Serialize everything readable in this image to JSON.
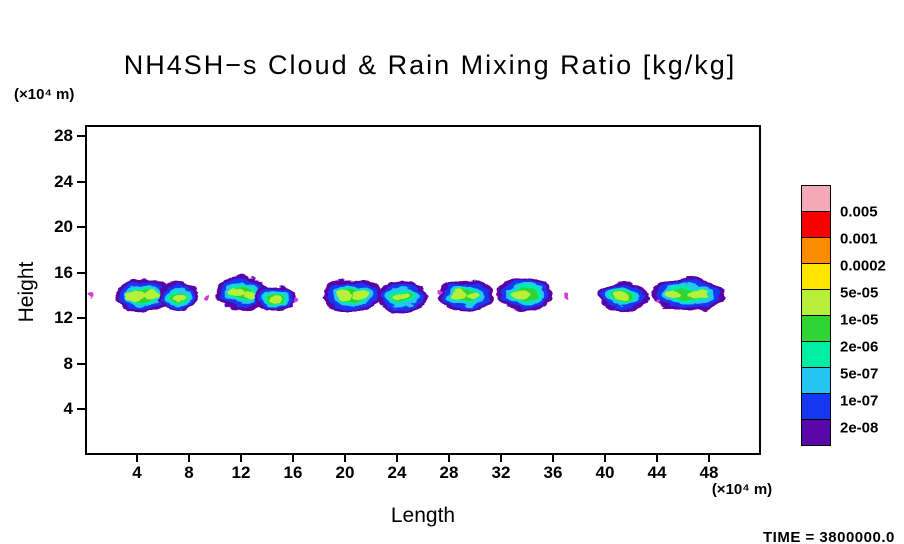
{
  "title": "NH4SH−s Cloud & Rain Mixing Ratio [kg/kg]",
  "time_label": "TIME = 3800000.0",
  "axes": {
    "x_label": "Length",
    "y_label": "Height",
    "x_units": "(×10⁴ m)",
    "y_units": "(×10⁴ m)",
    "x_ticks": [
      4,
      8,
      12,
      16,
      20,
      24,
      28,
      32,
      36,
      40,
      44,
      48
    ],
    "y_ticks": [
      4,
      8,
      12,
      16,
      20,
      24,
      28
    ],
    "x_range": [
      0,
      52
    ],
    "y_range": [
      0,
      29
    ]
  },
  "colorbar": {
    "labels": [
      "0.005",
      "0.001",
      "0.0002",
      "5e-05",
      "1e-05",
      "2e-06",
      "5e-07",
      "1e-07",
      "2e-08"
    ],
    "colors": [
      "#f5a9b8",
      "#f80000",
      "#ff8c00",
      "#ffe400",
      "#b8ef3a",
      "#2fd435",
      "#00efa5",
      "#25c5f2",
      "#1437f0",
      "#5a06a8"
    ]
  },
  "chart_data": {
    "type": "heatmap",
    "title": "NH4SH−s Cloud & Rain Mixing Ratio [kg/kg]",
    "xlabel": "Length (×10⁴ m)",
    "ylabel": "Height (×10⁴ m)",
    "xlim": [
      0,
      52
    ],
    "ylim": [
      0,
      29
    ],
    "grid": false,
    "legend_position": "right",
    "contour_levels_kg_per_kg": [
      2e-08,
      1e-07,
      5e-07,
      2e-06,
      1e-05,
      5e-05,
      0.0002,
      0.001,
      0.005
    ],
    "time_value": "3800000.0",
    "layer_colors": {
      "fringe": "#5a06a8",
      "blue": "#1437f0",
      "cyan": "#25c5f2",
      "spring": "#00efa5",
      "green": "#2fd435",
      "core": "#b8ef3a"
    },
    "speck_color": "#d43bd4",
    "blobs": [
      {
        "x": 4.4,
        "y": 14.0,
        "rx": 1.95,
        "ry": 1.2,
        "cores": [
          {
            "dx": -0.7,
            "dy": -0.05,
            "rx": 0.75,
            "ry": 0.45
          },
          {
            "dx": 0.55,
            "dy": 0.05,
            "rx": 0.6,
            "ry": 0.4
          }
        ]
      },
      {
        "x": 7.1,
        "y": 13.9,
        "rx": 1.35,
        "ry": 1.0,
        "cores": [
          {
            "dx": 0.05,
            "dy": 0.0,
            "rx": 0.55,
            "ry": 0.38
          }
        ]
      },
      {
        "x": 12.0,
        "y": 14.2,
        "rx": 1.75,
        "ry": 1.25,
        "cores": [
          {
            "dx": -0.45,
            "dy": 0.05,
            "rx": 0.65,
            "ry": 0.45
          },
          {
            "dx": 0.6,
            "dy": -0.15,
            "rx": 0.45,
            "ry": 0.3
          }
        ]
      },
      {
        "x": 14.6,
        "y": 13.7,
        "rx": 1.35,
        "ry": 0.95,
        "cores": [
          {
            "dx": 0.0,
            "dy": 0.0,
            "rx": 0.5,
            "ry": 0.35
          }
        ]
      },
      {
        "x": 20.5,
        "y": 14.0,
        "rx": 1.95,
        "ry": 1.2,
        "cores": [
          {
            "dx": -0.6,
            "dy": 0.0,
            "rx": 0.7,
            "ry": 0.42
          },
          {
            "dx": 0.7,
            "dy": 0.05,
            "rx": 0.55,
            "ry": 0.38
          }
        ]
      },
      {
        "x": 24.4,
        "y": 13.9,
        "rx": 1.7,
        "ry": 1.1,
        "cores": [
          {
            "dx": -0.1,
            "dy": 0.05,
            "rx": 0.7,
            "ry": 0.42
          }
        ]
      },
      {
        "x": 29.3,
        "y": 14.0,
        "rx": 1.85,
        "ry": 1.15,
        "cores": [
          {
            "dx": -0.55,
            "dy": 0.05,
            "rx": 0.6,
            "ry": 0.4
          },
          {
            "dx": 0.6,
            "dy": -0.05,
            "rx": 0.5,
            "ry": 0.35
          }
        ]
      },
      {
        "x": 33.9,
        "y": 14.1,
        "rx": 1.9,
        "ry": 1.2,
        "cores": [
          {
            "dx": -0.35,
            "dy": -0.05,
            "rx": 0.7,
            "ry": 0.45
          }
        ]
      },
      {
        "x": 41.5,
        "y": 13.9,
        "rx": 1.65,
        "ry": 1.05,
        "cores": [
          {
            "dx": -0.1,
            "dy": 0.0,
            "rx": 0.6,
            "ry": 0.4
          }
        ]
      },
      {
        "x": 46.5,
        "y": 14.1,
        "rx": 2.5,
        "ry": 1.2,
        "cores": [
          {
            "dx": -1.1,
            "dy": -0.05,
            "rx": 0.6,
            "ry": 0.4
          },
          {
            "dx": 0.75,
            "dy": 0.05,
            "rx": 0.8,
            "ry": 0.45
          }
        ]
      }
    ],
    "specks": [
      {
        "x": 0.4,
        "y": 14.0
      },
      {
        "x": 9.3,
        "y": 13.8
      },
      {
        "x": 16.2,
        "y": 13.6
      },
      {
        "x": 27.2,
        "y": 14.3
      },
      {
        "x": 37.1,
        "y": 14.0
      },
      {
        "x": 44.0,
        "y": 13.6
      }
    ]
  }
}
